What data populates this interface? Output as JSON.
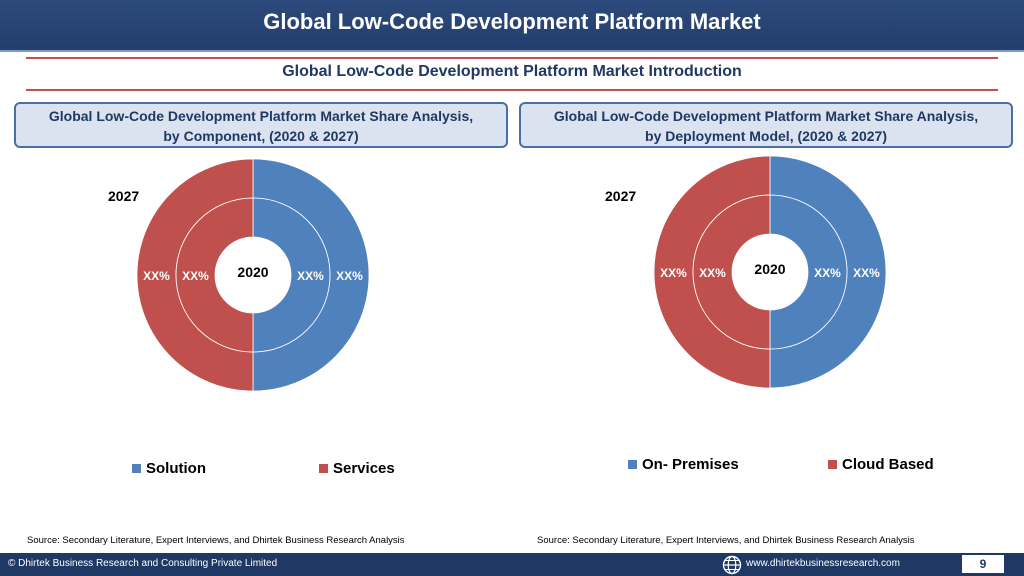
{
  "header": {
    "title": "Global Low-Code Development Platform Market"
  },
  "subtitle": "Global Low-Code Development Platform Market  Introduction",
  "colors": {
    "blue": "#4f81bd",
    "red": "#c0504d",
    "navy": "#1f3864"
  },
  "panels": [
    {
      "box_line1": "Global Low-Code Development Platform Market  Share Analysis,",
      "box_line2": "by Component, (2020 & 2027)",
      "outer_year": "2027",
      "inner_year": "2020",
      "value_labels": [
        "XX%",
        "XX%",
        "XX%",
        "XX%"
      ],
      "legend": [
        "Solution",
        "Services"
      ],
      "source": "Source: Secondary Literature, Expert Interviews, and Dhirtek Business Research Analysis"
    },
    {
      "box_line1": "Global Low-Code Development Platform Market  Share Analysis,",
      "box_line2": "by Deployment Model, (2020 & 2027)",
      "outer_year": "2027",
      "inner_year": "2020",
      "value_labels": [
        "XX%",
        "XX%",
        "XX%",
        "XX%"
      ],
      "legend": [
        "On- Premises",
        "Cloud Based"
      ],
      "source": "Source: Secondary Literature, Expert Interviews, and Dhirtek Business Research Analysis"
    }
  ],
  "chart_data": [
    {
      "type": "pie",
      "title": "Global Low-Code Development Platform Market  Share Analysis, by Component, (2020 & 2027)",
      "categories": [
        "Solution",
        "Services"
      ],
      "series": [
        {
          "name": "2020",
          "values": [
            50,
            50
          ]
        },
        {
          "name": "2027",
          "values": [
            50,
            50
          ]
        }
      ],
      "colors": [
        "#4f81bd",
        "#c0504d"
      ],
      "legend_position": "bottom"
    },
    {
      "type": "pie",
      "title": "Global Low-Code Development Platform Market  Share Analysis, by Deployment Model, (2020 & 2027)",
      "categories": [
        "On- Premises",
        "Cloud Based"
      ],
      "series": [
        {
          "name": "2020",
          "values": [
            50,
            50
          ]
        },
        {
          "name": "2027",
          "values": [
            50,
            50
          ]
        }
      ],
      "colors": [
        "#4f81bd",
        "#c0504d"
      ],
      "legend_position": "bottom"
    }
  ],
  "footer": {
    "copyright": "© Dhirtek Business Research and Consulting Private Limited",
    "website": "www.dhirtekbusinessresearch.com",
    "page": "9"
  }
}
